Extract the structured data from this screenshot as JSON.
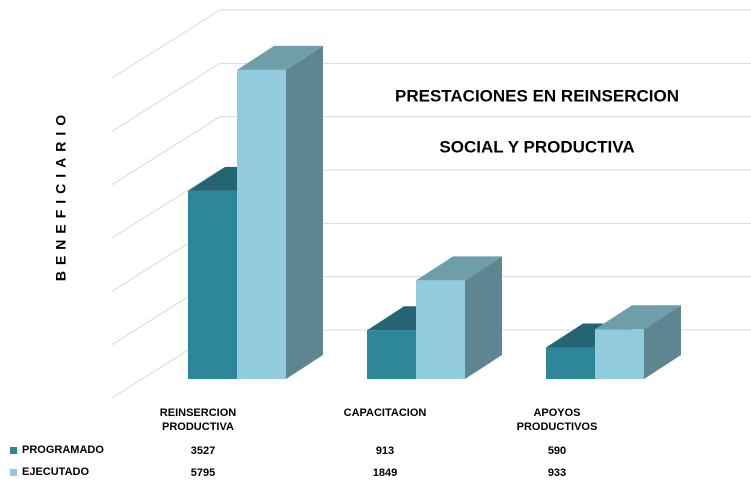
{
  "chart_data": {
    "type": "bar3d",
    "title": [
      "PRESTACIONES EN REINSERCION",
      "SOCIAL Y PRODUCTIVA"
    ],
    "y_label": "BENEFICIARIO",
    "categories": [
      "REINSERCION PRODUCTIVA",
      "CAPACITACION",
      "APOYOS PRODUCTIVOS"
    ],
    "series": [
      {
        "name": "PROGRAMADO",
        "color": "#2e8699",
        "values": [
          3527,
          913,
          590
        ]
      },
      {
        "name": "EJECUTADO",
        "color": "#92cbdd",
        "values": [
          5795,
          1849,
          933
        ]
      }
    ],
    "ylim": [
      0,
      6000
    ],
    "yticks": [
      0,
      1000,
      2000,
      3000,
      4000,
      5000,
      6000
    ],
    "grid": true
  }
}
